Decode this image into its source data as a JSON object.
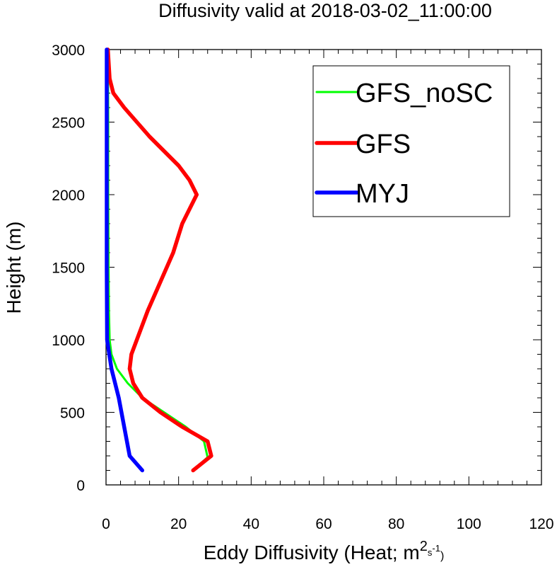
{
  "chart_data": {
    "type": "line",
    "title": "Diffusivity valid at 2018-03-02_11:00:00",
    "xlabel": "Eddy Diffusivity (Heat; m",
    "xlabel_sup1": "2",
    "xlabel_sub": "s",
    "xlabel_sup2": "-1",
    "xlabel_end": ")",
    "ylabel": "Height (m)",
    "xlim": [
      0,
      120
    ],
    "ylim": [
      0,
      3000
    ],
    "xticks": [
      0,
      20,
      40,
      60,
      80,
      100,
      120
    ],
    "yticks": [
      0,
      500,
      1000,
      1500,
      2000,
      2500,
      3000
    ],
    "xtick_labels": [
      "0",
      "20",
      "40",
      "60",
      "80",
      "100",
      "120"
    ],
    "ytick_labels": [
      "0",
      "500",
      "1000",
      "1500",
      "2000",
      "2500",
      "3000"
    ],
    "grid": false,
    "legend_position": "top-right",
    "series": [
      {
        "name": "GFS_noSC",
        "color": "#00ff00",
        "width": "thin",
        "points": [
          [
            24,
            100
          ],
          [
            28,
            190
          ],
          [
            27,
            300
          ],
          [
            22,
            400
          ],
          [
            16,
            500
          ],
          [
            10,
            600
          ],
          [
            6,
            700
          ],
          [
            3,
            800
          ],
          [
            1.5,
            900
          ],
          [
            1,
            1000
          ],
          [
            0.8,
            1200
          ],
          [
            0.7,
            1500
          ],
          [
            0.6,
            2000
          ],
          [
            0.6,
            2500
          ],
          [
            0.5,
            3000
          ]
        ]
      },
      {
        "name": "GFS",
        "color": "#ff0000",
        "width": "thick",
        "points": [
          [
            24,
            100
          ],
          [
            29,
            200
          ],
          [
            28,
            300
          ],
          [
            21,
            400
          ],
          [
            15,
            500
          ],
          [
            10,
            600
          ],
          [
            7.5,
            700
          ],
          [
            6.5,
            800
          ],
          [
            7,
            900
          ],
          [
            8.5,
            1000
          ],
          [
            11.5,
            1200
          ],
          [
            15,
            1400
          ],
          [
            18.5,
            1600
          ],
          [
            21,
            1800
          ],
          [
            25,
            2000
          ],
          [
            23,
            2100
          ],
          [
            20,
            2200
          ],
          [
            12,
            2400
          ],
          [
            5,
            2600
          ],
          [
            2,
            2700
          ],
          [
            1,
            2800
          ],
          [
            0.5,
            3000
          ]
        ]
      },
      {
        "name": "MYJ",
        "color": "#0000ff",
        "width": "thick",
        "points": [
          [
            10,
            100
          ],
          [
            6.5,
            200
          ],
          [
            5,
            400
          ],
          [
            3.5,
            600
          ],
          [
            1.5,
            800
          ],
          [
            0.3,
            1000
          ],
          [
            0.2,
            1500
          ],
          [
            0.2,
            2000
          ],
          [
            0.2,
            2500
          ],
          [
            0.2,
            3000
          ]
        ]
      }
    ]
  }
}
